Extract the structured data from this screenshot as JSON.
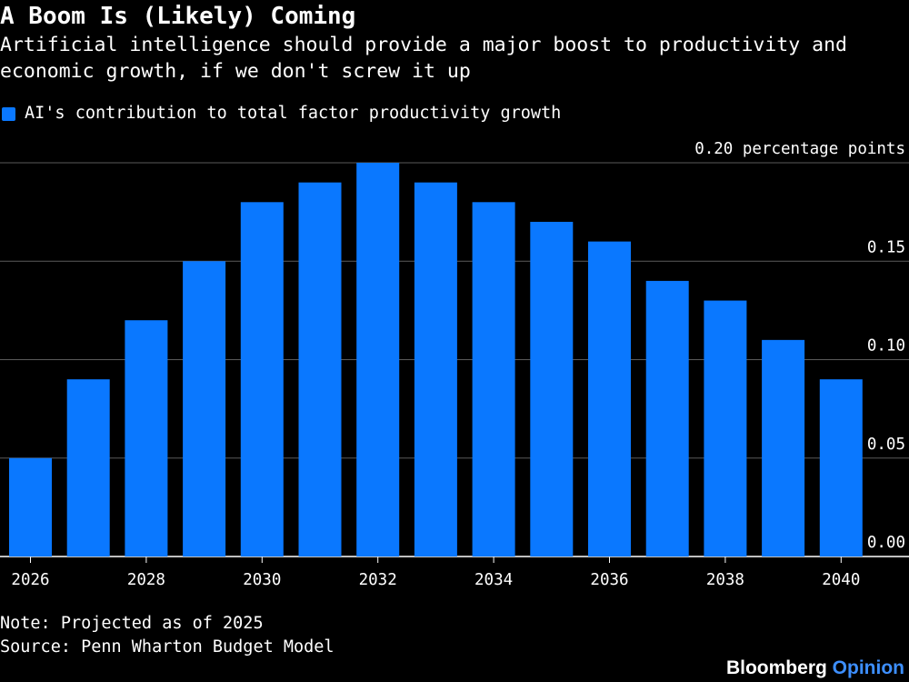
{
  "title": "A Boom Is (Likely) Coming",
  "subtitle": "Artificial intelligence should provide a major boost to productivity and economic growth, if we don't screw it up",
  "footer": {
    "note": "Note: Projected as of 2025",
    "source": "Source: Penn Wharton Budget Model",
    "brand_main": "Bloomberg",
    "brand_accent": "Opinion"
  },
  "colors": {
    "background": "#000000",
    "bar": "#0a78ff",
    "gridline": "#5a5a5a",
    "text": "#ffffff",
    "brand_accent": "#3d8fff"
  },
  "chart_data": {
    "type": "bar",
    "categories": [
      "2026",
      "2027",
      "2028",
      "2029",
      "2030",
      "2031",
      "2032",
      "2033",
      "2034",
      "2035",
      "2036",
      "2037",
      "2038",
      "2039",
      "2040"
    ],
    "series": [
      {
        "name": "AI's contribution to total factor productivity growth",
        "values": [
          0.05,
          0.09,
          0.12,
          0.15,
          0.18,
          0.19,
          0.2,
          0.19,
          0.18,
          0.17,
          0.16,
          0.14,
          0.13,
          0.11,
          0.09
        ]
      }
    ],
    "x_tick_labels": [
      "2026",
      "2028",
      "2030",
      "2032",
      "2034",
      "2036",
      "2038",
      "2040"
    ],
    "y_ticks": [
      0.0,
      0.05,
      0.1,
      0.15,
      0.2
    ],
    "y_tick_labels": [
      "0.00",
      "0.05",
      "0.10",
      "0.15",
      "0.20 percentage points"
    ],
    "ylim": [
      0,
      0.2
    ],
    "grid": true,
    "y_axis_position": "right",
    "legend_position": "top-left"
  }
}
